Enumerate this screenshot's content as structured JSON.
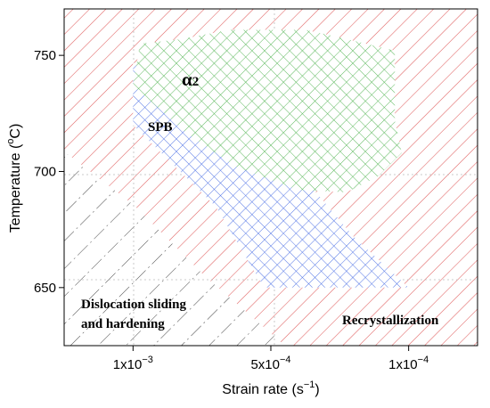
{
  "chart_data": {
    "type": "processing-map",
    "xlabel": "Strain rate (s",
    "xlabel_sup": "−1",
    "xlabel_close": ")",
    "ylabel_pre": "Temperature (",
    "ylabel_sup": "o",
    "ylabel_post": "C)",
    "ylim": [
      625,
      770
    ],
    "y_ticks": [
      {
        "value": 650,
        "label": "650"
      },
      {
        "value": 700,
        "label": "700"
      },
      {
        "value": 750,
        "label": "750"
      }
    ],
    "x_ticks": [
      {
        "pos": 0,
        "base": "1x10",
        "exp": "−3"
      },
      {
        "pos": 1,
        "base": "5x10",
        "exp": "−4"
      },
      {
        "pos": 2,
        "base": "1x10",
        "exp": "−4"
      }
    ],
    "xlim_pos": [
      -0.5,
      2.5
    ],
    "grid_lines_x": [
      0,
      1
    ],
    "grid_lines_y": [
      650,
      700
    ],
    "regions": [
      {
        "name": "Recrystallization",
        "label": "Recrystallization",
        "pattern": "red-hatch",
        "color": "#e06060"
      },
      {
        "name": "Dislocation sliding and hardening",
        "label_lines": [
          "Dislocation sliding",
          "and hardening"
        ],
        "pattern": "dashdot-hatch",
        "color": "#333333"
      },
      {
        "name": "SPB",
        "label": "SPB",
        "pattern": "blue-crosshatch",
        "color": "#5577e6",
        "polygon": [
          [
            0.0,
            747
          ],
          [
            0.0,
            720
          ],
          [
            0.6,
            685
          ],
          [
            0.95,
            650
          ],
          [
            2.0,
            650
          ],
          [
            1.6,
            672
          ],
          [
            1.2,
            700
          ],
          [
            0.8,
            720
          ],
          [
            0.5,
            730
          ]
        ]
      },
      {
        "name": "α2",
        "label": "α",
        "label_sub": "2",
        "pattern": "green-crosshatch",
        "color": "#5cb85c",
        "polygon": [
          [
            0.0,
            737
          ],
          [
            0.05,
            755
          ],
          [
            0.35,
            757
          ],
          [
            0.7,
            761
          ],
          [
            1.25,
            761
          ],
          [
            1.55,
            757
          ],
          [
            1.9,
            752
          ],
          [
            1.9,
            722
          ],
          [
            1.95,
            708
          ],
          [
            1.78,
            698
          ],
          [
            1.55,
            691
          ],
          [
            1.2,
            692
          ],
          [
            0.75,
            702
          ],
          [
            0.4,
            716
          ]
        ]
      }
    ]
  }
}
